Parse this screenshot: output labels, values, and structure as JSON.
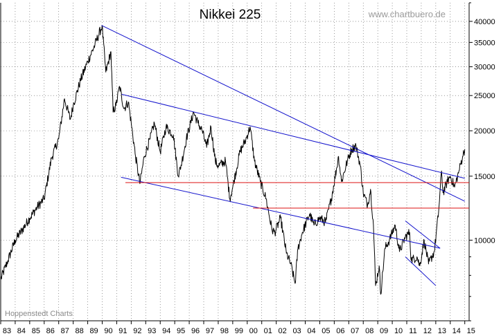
{
  "chart_data": {
    "type": "line",
    "title": "Nikkei 225",
    "source": "www.chartbuero.de",
    "footer": "Hoppenstedt Charts",
    "y_scale": "log",
    "ylim": [
      6000,
      45000
    ],
    "yticks": [
      10000,
      15000,
      20000,
      25000,
      30000,
      35000,
      40000
    ],
    "ytick_labels": [
      "10000",
      "15000",
      "20000",
      "25000",
      "30000",
      "35000",
      "40000"
    ],
    "xlim": [
      1983.0,
      2015.3
    ],
    "xtick_labels": [
      "83",
      "84",
      "85",
      "86",
      "87",
      "88",
      "89",
      "90",
      "91",
      "92",
      "93",
      "94",
      "95",
      "96",
      "97",
      "98",
      "99",
      "00",
      "01",
      "02",
      "03",
      "04",
      "05",
      "06",
      "07",
      "08",
      "09",
      "10",
      "11",
      "12",
      "13",
      "14",
      "15"
    ],
    "grid": true,
    "colors": {
      "price": "#000000",
      "trendline": "#1010cc",
      "support": "#dd1111",
      "grid": "#555555"
    },
    "series": [
      {
        "type": "line",
        "points": [
          [
            1983.0,
            7800
          ],
          [
            1983.5,
            8800
          ],
          [
            1984.0,
            10000
          ],
          [
            1984.5,
            10700
          ],
          [
            1985.0,
            11500
          ],
          [
            1985.5,
            12300
          ],
          [
            1986.0,
            13000
          ],
          [
            1986.5,
            16800
          ],
          [
            1987.0,
            19000
          ],
          [
            1987.4,
            24500
          ],
          [
            1987.8,
            21500
          ],
          [
            1988.0,
            23500
          ],
          [
            1988.5,
            27500
          ],
          [
            1989.0,
            31000
          ],
          [
            1989.5,
            34500
          ],
          [
            1989.99,
            38900
          ],
          [
            1990.25,
            29000
          ],
          [
            1990.6,
            33000
          ],
          [
            1990.75,
            22500
          ],
          [
            1990.95,
            23500
          ],
          [
            1991.2,
            26500
          ],
          [
            1991.5,
            23000
          ],
          [
            1991.8,
            24000
          ],
          [
            1992.0,
            21000
          ],
          [
            1992.3,
            17000
          ],
          [
            1992.6,
            14300
          ],
          [
            1992.9,
            17000
          ],
          [
            1993.3,
            19000
          ],
          [
            1993.6,
            21000
          ],
          [
            1994.0,
            17500
          ],
          [
            1994.4,
            20500
          ],
          [
            1994.9,
            19500
          ],
          [
            1995.25,
            15000
          ],
          [
            1995.5,
            16500
          ],
          [
            1995.8,
            19000
          ],
          [
            1996.3,
            22500
          ],
          [
            1996.6,
            21000
          ],
          [
            1996.9,
            20000
          ],
          [
            1997.2,
            18000
          ],
          [
            1997.5,
            20500
          ],
          [
            1997.8,
            16500
          ],
          [
            1998.0,
            16000
          ],
          [
            1998.5,
            16500
          ],
          [
            1998.8,
            13000
          ],
          [
            1999.0,
            14000
          ],
          [
            1999.5,
            17500
          ],
          [
            1999.9,
            18900
          ],
          [
            2000.2,
            20500
          ],
          [
            2000.5,
            16500
          ],
          [
            2000.9,
            14500
          ],
          [
            2001.3,
            13000
          ],
          [
            2001.7,
            10700
          ],
          [
            2001.9,
            10500
          ],
          [
            2002.3,
            11500
          ],
          [
            2002.7,
            9200
          ],
          [
            2003.0,
            8600
          ],
          [
            2003.3,
            7600
          ],
          [
            2003.5,
            9500
          ],
          [
            2003.8,
            10500
          ],
          [
            2004.3,
            11800
          ],
          [
            2004.6,
            11000
          ],
          [
            2005.0,
            11500
          ],
          [
            2005.4,
            11200
          ],
          [
            2005.8,
            13000
          ],
          [
            2006.3,
            17000
          ],
          [
            2006.5,
            14500
          ],
          [
            2006.9,
            16500
          ],
          [
            2007.2,
            17800
          ],
          [
            2007.5,
            18200
          ],
          [
            2007.8,
            16000
          ],
          [
            2008.0,
            13500
          ],
          [
            2008.3,
            12500
          ],
          [
            2008.5,
            13800
          ],
          [
            2008.7,
            11000
          ],
          [
            2008.85,
            7500
          ],
          [
            2009.1,
            8500
          ],
          [
            2009.2,
            7100
          ],
          [
            2009.5,
            9500
          ],
          [
            2009.8,
            10000
          ],
          [
            2010.2,
            11000
          ],
          [
            2010.5,
            9300
          ],
          [
            2010.9,
            10200
          ],
          [
            2011.2,
            10500
          ],
          [
            2011.3,
            8800
          ],
          [
            2011.7,
            9000
          ],
          [
            2011.9,
            8500
          ],
          [
            2012.2,
            10000
          ],
          [
            2012.5,
            8600
          ],
          [
            2012.9,
            9300
          ],
          [
            2013.2,
            12000
          ],
          [
            2013.4,
            15500
          ],
          [
            2013.5,
            13500
          ],
          [
            2013.8,
            14500
          ],
          [
            2014.0,
            15000
          ],
          [
            2014.3,
            14000
          ],
          [
            2014.6,
            15500
          ],
          [
            2014.85,
            17000
          ],
          [
            2015.0,
            17800
          ]
        ]
      }
    ],
    "trendlines": [
      {
        "color": "blue",
        "from": [
          1989.95,
          39000
        ],
        "to": [
          2015.0,
          12800
        ]
      },
      {
        "color": "blue",
        "from": [
          1991.35,
          25200
        ],
        "to": [
          2015.0,
          14800
        ]
      },
      {
        "color": "blue",
        "from": [
          1991.3,
          14900
        ],
        "to": [
          2013.3,
          9500
        ]
      },
      {
        "color": "blue",
        "from": [
          2010.9,
          11300
        ],
        "to": [
          2013.3,
          9500
        ]
      },
      {
        "color": "blue",
        "from": [
          2010.9,
          9000
        ],
        "to": [
          2013.0,
          7500
        ]
      },
      {
        "color": "red",
        "from": [
          1991.6,
          14400
        ],
        "to": [
          2015.3,
          14400
        ]
      },
      {
        "color": "red",
        "from": [
          2000.4,
          12250
        ],
        "to": [
          2015.3,
          12250
        ]
      }
    ]
  }
}
